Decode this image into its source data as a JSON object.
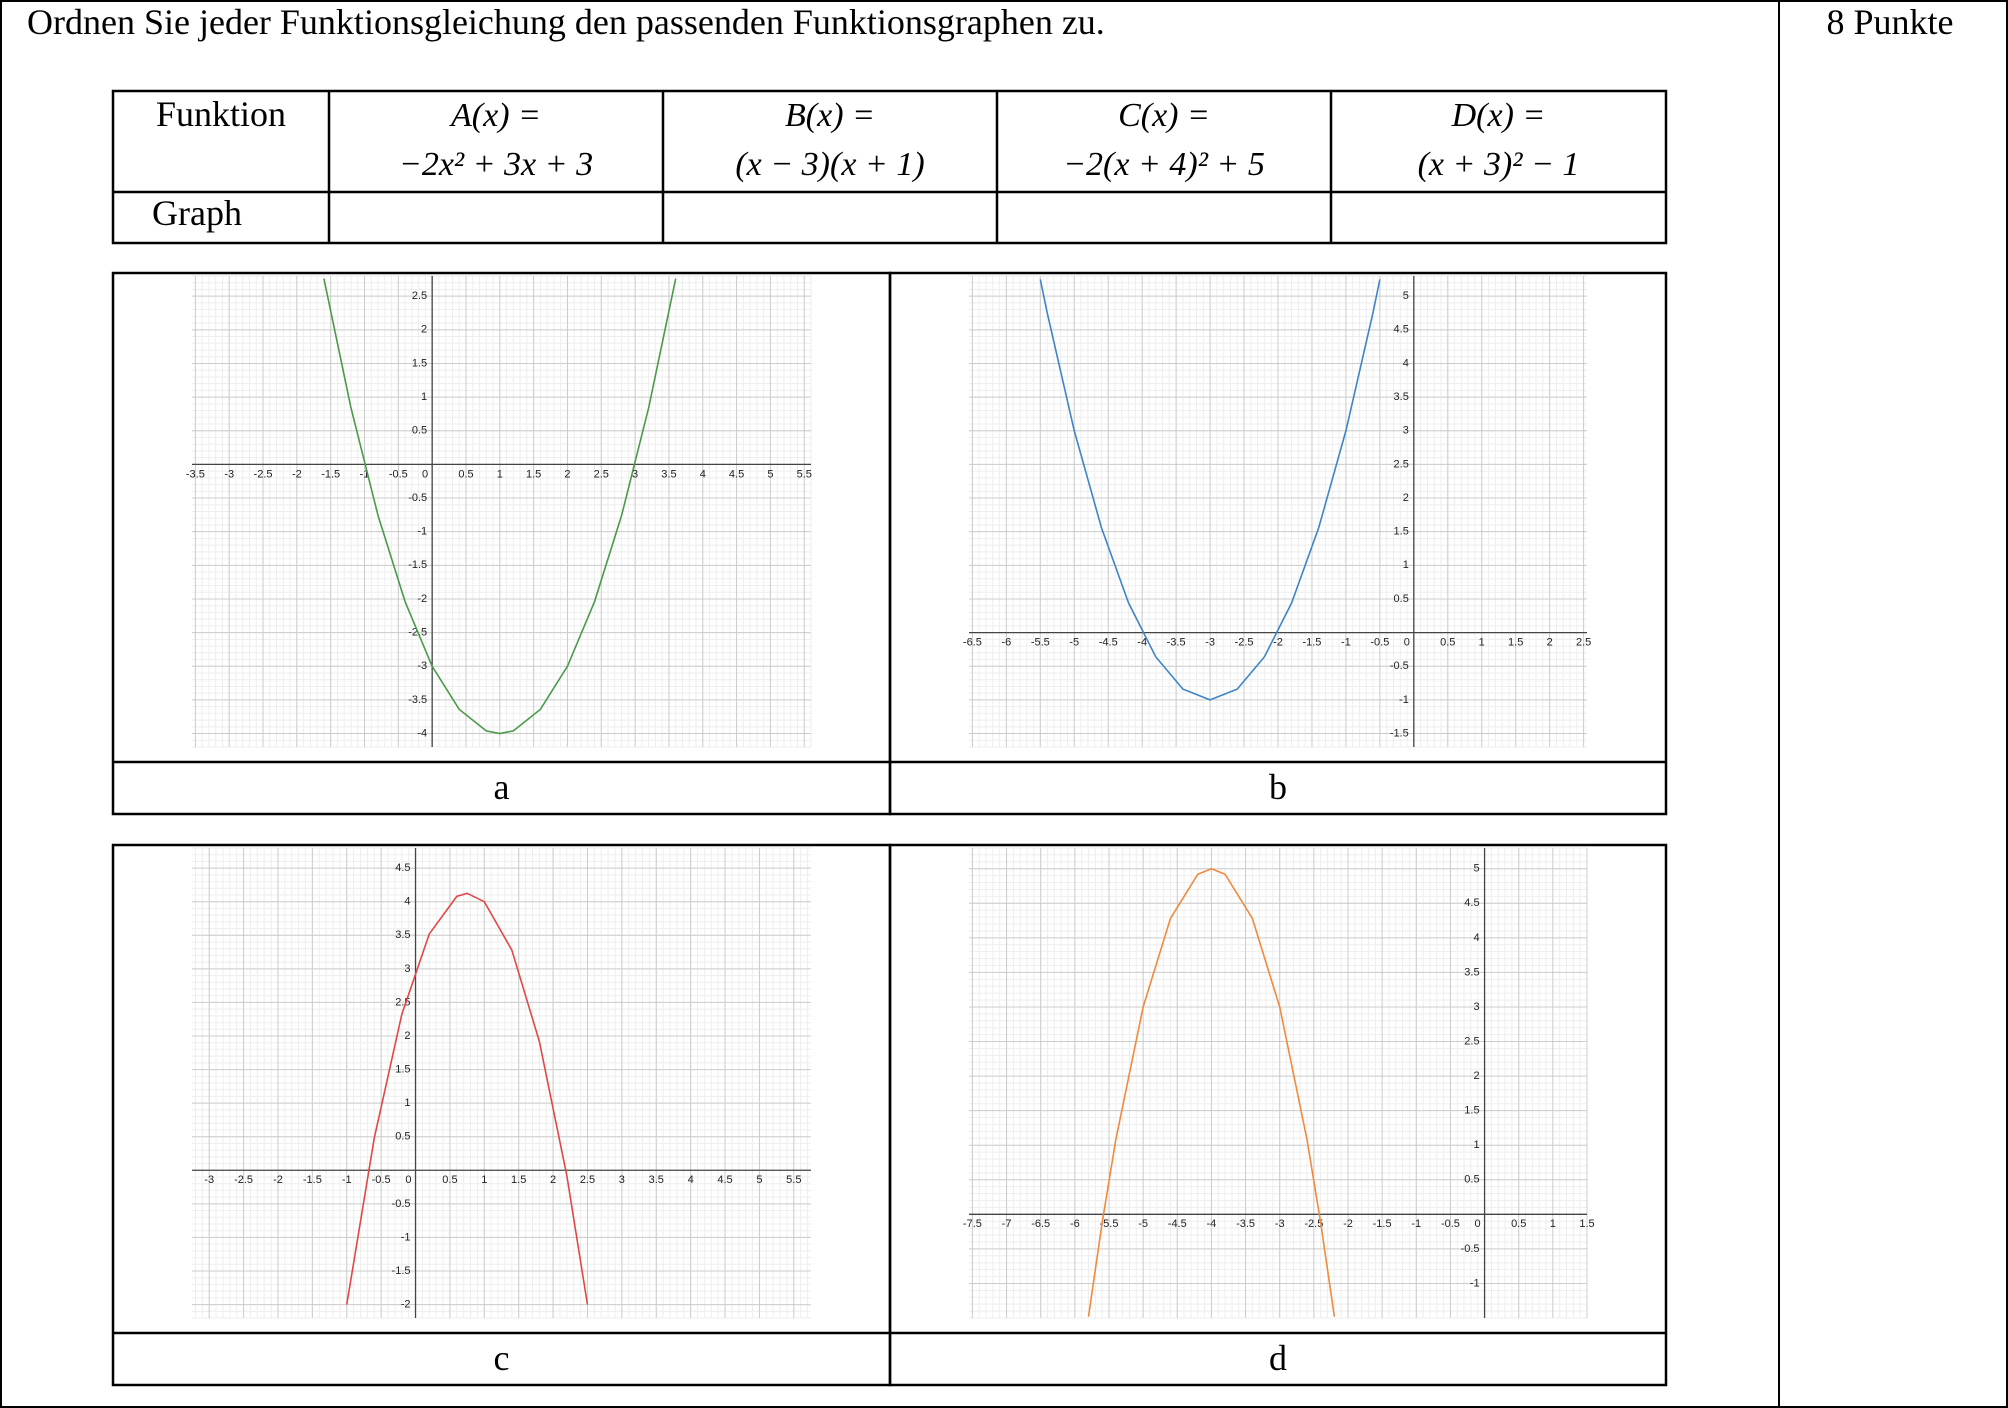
{
  "header": {
    "instruction": "Ordnen Sie jeder Funktionsgleichung den passenden Funktionsgraphen zu.",
    "points": "8 Punkte"
  },
  "table": {
    "row_headers": [
      "Funktion",
      "Graph"
    ],
    "functions": [
      {
        "name": "A(x) =",
        "expression": "−2x² + 3x + 3"
      },
      {
        "name": "B(x) =",
        "expression": "(x − 3)(x + 1)"
      },
      {
        "name": "C(x) =",
        "expression": "−2(x + 4)² + 5"
      },
      {
        "name": "D(x) =",
        "expression": "(x + 3)² − 1"
      }
    ]
  },
  "graphs": [
    {
      "label": "a",
      "color": "#4a9a4a",
      "xlim": [
        -3.55,
        5.6
      ],
      "ylim": [
        -4.2,
        2.8
      ],
      "xticks": [
        -3.5,
        -3,
        -2.5,
        -2,
        -1.5,
        -1,
        -0.5,
        0,
        0.5,
        1,
        1.5,
        2,
        2.5,
        3,
        3.5,
        4,
        4.5,
        5,
        5.5
      ],
      "yticks": [
        -4,
        -3.5,
        -3,
        -2.5,
        -2,
        -1.5,
        -1,
        -0.5,
        0.5,
        1,
        1.5,
        2,
        2.5
      ],
      "x": [
        -1.6,
        -1.2,
        -0.8,
        -0.4,
        0,
        0.4,
        0.8,
        1,
        1.2,
        1.6,
        2,
        2.4,
        2.8,
        3.2,
        3.6
      ],
      "values": [
        2.76,
        0.84,
        -0.76,
        -2.04,
        -3,
        -3.64,
        -3.96,
        -4,
        -3.96,
        -3.64,
        -3,
        -2.04,
        -0.76,
        0.84,
        2.76
      ]
    },
    {
      "label": "b",
      "color": "#3d85c6",
      "xlim": [
        -6.55,
        2.55
      ],
      "ylim": [
        -1.7,
        5.3
      ],
      "xticks": [
        -6.5,
        -6,
        -5.5,
        -5,
        -4.5,
        -4,
        -3.5,
        -3,
        -2.5,
        -2,
        -1.5,
        -1,
        -0.5,
        0,
        0.5,
        1,
        1.5,
        2,
        2.5
      ],
      "yticks": [
        -1.5,
        -1,
        -0.5,
        0.5,
        1,
        1.5,
        2,
        2.5,
        3,
        3.5,
        4,
        4.5,
        5
      ],
      "x": [
        -5.5,
        -5.4,
        -5,
        -4.6,
        -4.2,
        -3.8,
        -3.4,
        -3,
        -2.6,
        -2.2,
        -1.8,
        -1.4,
        -1,
        -0.6,
        -0.5
      ],
      "values": [
        5.25,
        4.76,
        3,
        1.56,
        0.44,
        -0.36,
        -0.84,
        -1,
        -0.84,
        -0.36,
        0.44,
        1.56,
        3,
        4.76,
        5.25
      ]
    },
    {
      "label": "c",
      "color": "#e04848",
      "xlim": [
        -3.25,
        5.75
      ],
      "ylim": [
        -2.2,
        4.8
      ],
      "xticks": [
        -3,
        -2.5,
        -2,
        -1.5,
        -1,
        -0.5,
        0,
        0.5,
        1,
        1.5,
        2,
        2.5,
        3,
        3.5,
        4,
        4.5,
        5,
        5.5
      ],
      "yticks": [
        -2,
        -1.5,
        -1,
        -0.5,
        0.5,
        1,
        1.5,
        2,
        2.5,
        3,
        3.5,
        4,
        4.5
      ],
      "x": [
        -1,
        -0.6,
        -0.2,
        0.2,
        0.6,
        0.75,
        1,
        1.4,
        1.8,
        2.2,
        2.5
      ],
      "values": [
        -2,
        0.48,
        2.32,
        3.52,
        4.08,
        4.125,
        4,
        3.28,
        1.92,
        -0.08,
        -2
      ]
    },
    {
      "label": "d",
      "color": "#f08a3c",
      "xlim": [
        -7.55,
        1.5
      ],
      "ylim": [
        -1.5,
        5.3
      ],
      "xticks": [
        -7.5,
        -7,
        -6.5,
        -6,
        -5.5,
        -5,
        -4.5,
        -4,
        -3.5,
        -3,
        -2.5,
        -2,
        -1.5,
        -1,
        -0.5,
        0,
        0.5,
        1,
        1.5
      ],
      "yticks": [
        -1,
        -0.5,
        0.5,
        1,
        1.5,
        2,
        2.5,
        3,
        3.5,
        4,
        4.5,
        5
      ],
      "x": [
        -5.8,
        -5.6,
        -5.4,
        -5,
        -4.6,
        -4.2,
        -4,
        -3.8,
        -3.4,
        -3,
        -2.6,
        -2.4,
        -2.2
      ],
      "values": [
        -1.48,
        -0.12,
        1.08,
        3,
        4.28,
        4.92,
        5,
        4.92,
        4.28,
        3,
        1.08,
        -0.12,
        -1.48
      ]
    }
  ]
}
